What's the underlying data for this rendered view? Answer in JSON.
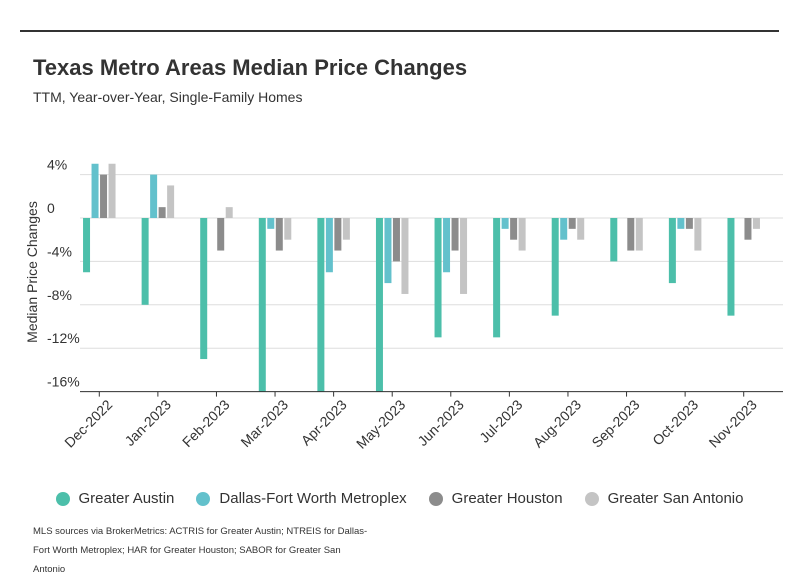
{
  "header": {
    "title": "Texas Metro Areas Median Price Changes",
    "subtitle": "TTM, Year-over-Year, Single-Family Homes"
  },
  "source_note": "MLS sources via BrokerMetrics: ACTRIS for Greater Austin; NTREIS for Dallas-Fort Worth Metroplex; HAR for Greater Houston; SABOR for Greater San Antonio",
  "chart_data": {
    "type": "bar",
    "title": "Texas Metro Areas Median Price Changes",
    "subtitle": "TTM, Year-over-Year, Single-Family Homes",
    "xlabel": "",
    "ylabel": "Median Price Changes",
    "categories": [
      "Dec-2022",
      "Jan-2023",
      "Feb-2023",
      "Mar-2023",
      "Apr-2023",
      "May-2023",
      "Jun-2023",
      "Jul-2023",
      "Aug-2023",
      "Sep-2023",
      "Oct-2023",
      "Nov-2023"
    ],
    "yticks": [
      "4%",
      "0",
      "-4%",
      "-8%",
      "-12%",
      "-16%"
    ],
    "ytick_values": [
      4,
      0,
      -4,
      -8,
      -12,
      -16
    ],
    "ylim": [
      -16,
      4
    ],
    "grid": true,
    "legend_position": "bottom",
    "series": [
      {
        "name": "Greater Austin",
        "color": "#4cbfaa",
        "values": [
          -5,
          -8,
          -13,
          -16,
          -16,
          -16,
          -11,
          -11,
          -9,
          -4,
          -6,
          -9
        ]
      },
      {
        "name": "Dallas-Fort Worth Metroplex",
        "color": "#63c1cc",
        "values": [
          5,
          4,
          0,
          -1,
          -5,
          -6,
          -5,
          -1,
          -2,
          0,
          -1,
          0
        ]
      },
      {
        "name": "Greater Houston",
        "color": "#8c8c8c",
        "values": [
          4,
          1,
          -3,
          -3,
          -3,
          -4,
          -3,
          -2,
          -1,
          -3,
          -1,
          -2
        ]
      },
      {
        "name": "Greater San Antonio",
        "color": "#c4c4c4",
        "values": [
          5,
          3,
          1,
          -2,
          -2,
          -7,
          -7,
          -3,
          -2,
          -3,
          -3,
          -1
        ]
      }
    ]
  }
}
